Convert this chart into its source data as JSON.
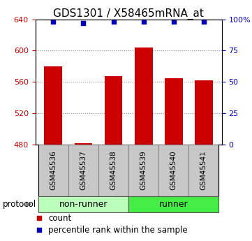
{
  "title": "GDS1301 / X58465mRNA_at",
  "samples": [
    "GSM45536",
    "GSM45537",
    "GSM45538",
    "GSM45539",
    "GSM45540",
    "GSM45541"
  ],
  "counts": [
    580,
    482,
    567,
    604,
    565,
    562
  ],
  "percentile_ranks": [
    98,
    97,
    98,
    98,
    98,
    98
  ],
  "group_colors": {
    "non-runner": "#AAFFAA",
    "runner": "#44DD44"
  },
  "bar_color": "#CC0000",
  "dot_color": "#0000BB",
  "ylim_left": [
    480,
    640
  ],
  "yticks_left": [
    480,
    520,
    560,
    600,
    640
  ],
  "ylim_right": [
    0,
    100
  ],
  "yticks_right": [
    0,
    25,
    50,
    75,
    100
  ],
  "ylabel_left_color": "#CC0000",
  "ylabel_right_color": "#0000BB",
  "grid_color": "#888888",
  "title_fontsize": 11,
  "tick_fontsize": 8,
  "sample_label_fontsize": 7.5,
  "group_label_fontsize": 9,
  "legend_fontsize": 8.5,
  "bar_width": 0.6,
  "legend_items": [
    "count",
    "percentile rank within the sample"
  ],
  "protocol_label": "protocol",
  "groups_info": [
    {
      "label": "non-runner",
      "start": 0,
      "end": 2,
      "color": "#BBFFBB"
    },
    {
      "label": "runner",
      "start": 3,
      "end": 5,
      "color": "#44EE44"
    }
  ]
}
